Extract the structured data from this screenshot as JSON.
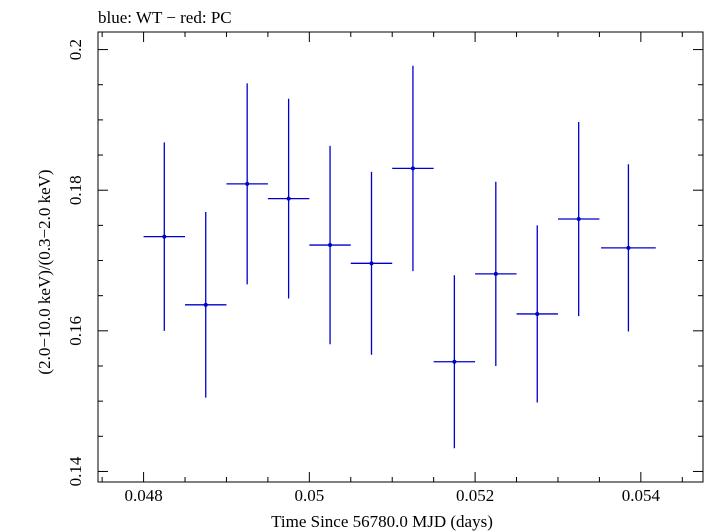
{
  "chart_data": {
    "type": "scatter",
    "title": "blue: WT − red: PC",
    "xlabel": "Time Since 56780.0 MJD (days)",
    "ylabel": "(2.0−10.0 keV)/(0.3−2.0 keV)",
    "xlim": [
      0.04745,
      0.05475
    ],
    "ylim": [
      0.1385,
      0.2025
    ],
    "xticks": [
      0.048,
      0.05,
      0.052,
      0.054
    ],
    "xtick_labels": [
      "0.048",
      "0.05",
      "0.052",
      "0.054"
    ],
    "yticks": [
      0.14,
      0.16,
      0.18,
      0.2
    ],
    "ytick_labels": [
      "0.14",
      "0.16",
      "0.18",
      "0.2"
    ],
    "grid": false,
    "series": [
      {
        "color": "#0000cc",
        "points": [
          {
            "x": 0.04825,
            "y": 0.1734,
            "xerr": 0.00025,
            "yerr": 0.0134
          },
          {
            "x": 0.04875,
            "y": 0.1637,
            "xerr": 0.00025,
            "yerr": 0.0132
          },
          {
            "x": 0.04925,
            "y": 0.1809,
            "xerr": 0.00025,
            "yerr": 0.0143
          },
          {
            "x": 0.04975,
            "y": 0.1788,
            "xerr": 0.00025,
            "yerr": 0.0142
          },
          {
            "x": 0.05025,
            "y": 0.1722,
            "xerr": 0.00025,
            "yerr": 0.0141
          },
          {
            "x": 0.05075,
            "y": 0.1696,
            "xerr": 0.00025,
            "yerr": 0.013
          },
          {
            "x": 0.05125,
            "y": 0.1831,
            "xerr": 0.00025,
            "yerr": 0.0146
          },
          {
            "x": 0.05175,
            "y": 0.1556,
            "xerr": 0.00025,
            "yerr": 0.0123
          },
          {
            "x": 0.05225,
            "y": 0.1681,
            "xerr": 0.00025,
            "yerr": 0.0131
          },
          {
            "x": 0.05275,
            "y": 0.1624,
            "xerr": 0.00025,
            "yerr": 0.0126
          },
          {
            "x": 0.05325,
            "y": 0.1759,
            "xerr": 0.00025,
            "yerr": 0.0138
          },
          {
            "x": 0.05385,
            "y": 0.1718,
            "xerr": 0.00033,
            "yerr": 0.0119
          }
        ]
      }
    ]
  }
}
